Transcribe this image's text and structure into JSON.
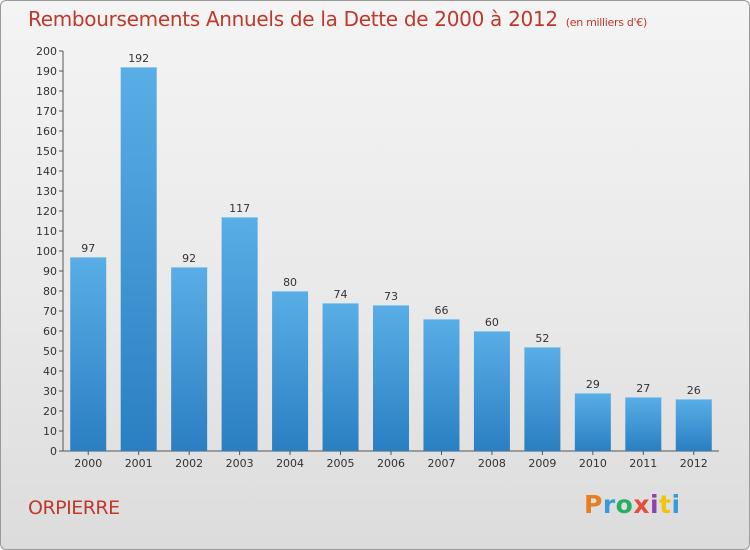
{
  "header": {
    "title": "Remboursements Annuels de la Dette de 2000 à 2012",
    "unit": "(en milliers d'€)"
  },
  "footer": {
    "commune": "ORPIERRE",
    "logo_letters": [
      "P",
      "r",
      "o",
      "x",
      "i",
      "t",
      "i"
    ]
  },
  "colors": {
    "accent_text": "#c0392b",
    "bar_top": "#5aaee6",
    "bar_bottom": "#2a7fc2",
    "logo": [
      "#e67e22",
      "#3a9ad9",
      "#27ae60",
      "#e74c3c",
      "#8e44ad",
      "#f1c40f",
      "#3a9ad9"
    ]
  },
  "chart_data": {
    "type": "bar",
    "title": "Remboursements Annuels de la Dette de 2000 à 2012",
    "subtitle": "(en milliers d'€)",
    "xlabel": "",
    "ylabel": "",
    "categories": [
      "2000",
      "2001",
      "2002",
      "2003",
      "2004",
      "2005",
      "2006",
      "2007",
      "2008",
      "2009",
      "2010",
      "2011",
      "2012"
    ],
    "values": [
      97,
      192,
      92,
      117,
      80,
      74,
      73,
      66,
      60,
      52,
      29,
      27,
      26
    ],
    "ylim": [
      0,
      200
    ],
    "yticks": [
      0,
      10,
      20,
      30,
      40,
      50,
      60,
      70,
      80,
      90,
      100,
      110,
      120,
      130,
      140,
      150,
      160,
      170,
      180,
      190,
      200
    ],
    "grid": false,
    "legend": "none"
  }
}
